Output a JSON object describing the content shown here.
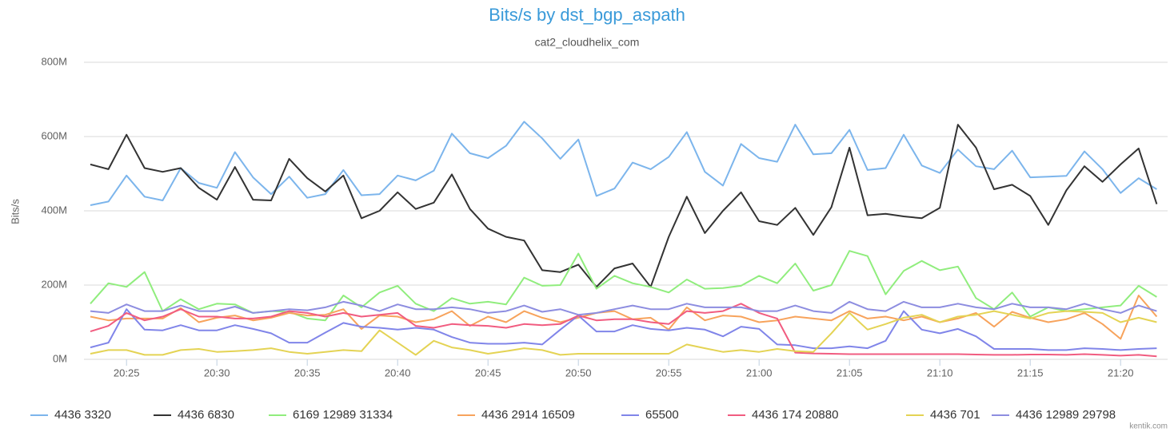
{
  "chart_data": {
    "type": "line",
    "title": "Bits/s by dst_bgp_aspath",
    "subtitle": "cat2_cloudhelix_com",
    "y_axis_label": "Bits/s",
    "credit": "kentik.com",
    "categories": [
      null,
      null,
      "20:25",
      null,
      null,
      null,
      null,
      "20:30",
      null,
      null,
      null,
      null,
      "20:35",
      null,
      null,
      null,
      null,
      "20:40",
      null,
      null,
      null,
      null,
      "20:45",
      null,
      null,
      null,
      null,
      "20:50",
      null,
      null,
      null,
      null,
      "20:55",
      null,
      null,
      null,
      null,
      "21:00",
      null,
      null,
      null,
      null,
      "21:05",
      null,
      null,
      null,
      null,
      "21:10",
      null,
      null,
      null,
      null,
      "21:15",
      null,
      null,
      null,
      null,
      "21:20",
      null,
      null
    ],
    "ylim": [
      0,
      800000000.0
    ],
    "yticks": [
      {
        "value": 0,
        "label": "0M"
      },
      {
        "value": 200000000.0,
        "label": "200M"
      },
      {
        "value": 400000000.0,
        "label": "400M"
      },
      {
        "value": 600000000.0,
        "label": "600M"
      },
      {
        "value": 800000000.0,
        "label": "800M"
      }
    ],
    "grid": true,
    "legend": "bottom",
    "series": [
      {
        "name": "4436 3320",
        "color": "#7cb5ec",
        "values": [
          415000000.0,
          425000000.0,
          495000000.0,
          438000000.0,
          428000000.0,
          515000000.0,
          475000000.0,
          462000000.0,
          558000000.0,
          490000000.0,
          445000000.0,
          492000000.0,
          435000000.0,
          445000000.0,
          510000000.0,
          442000000.0,
          445000000.0,
          495000000.0,
          482000000.0,
          508000000.0,
          608000000.0,
          555000000.0,
          542000000.0,
          575000000.0,
          640000000.0,
          595000000.0,
          540000000.0,
          592000000.0,
          440000000.0,
          460000000.0,
          530000000.0,
          512000000.0,
          545000000.0,
          612000000.0,
          505000000.0,
          468000000.0,
          580000000.0,
          542000000.0,
          532000000.0,
          632000000.0,
          552000000.0,
          555000000.0,
          618000000.0,
          510000000.0,
          515000000.0,
          605000000.0,
          522000000.0,
          502000000.0,
          565000000.0,
          520000000.0,
          512000000.0,
          562000000.0,
          490000000.0,
          492000000.0,
          494000000.0,
          560000000.0,
          512000000.0,
          448000000.0,
          488000000.0,
          458000000.0
        ]
      },
      {
        "name": "4436 6830",
        "color": "#333333",
        "values": [
          525000000.0,
          512000000.0,
          605000000.0,
          515000000.0,
          505000000.0,
          515000000.0,
          462000000.0,
          430000000.0,
          518000000.0,
          430000000.0,
          428000000.0,
          540000000.0,
          488000000.0,
          452000000.0,
          495000000.0,
          380000000.0,
          400000000.0,
          450000000.0,
          405000000.0,
          422000000.0,
          498000000.0,
          405000000.0,
          352000000.0,
          330000000.0,
          320000000.0,
          240000000.0,
          235000000.0,
          255000000.0,
          195000000.0,
          245000000.0,
          258000000.0,
          195000000.0,
          330000000.0,
          438000000.0,
          340000000.0,
          400000000.0,
          450000000.0,
          372000000.0,
          362000000.0,
          408000000.0,
          335000000.0,
          410000000.0,
          570000000.0,
          388000000.0,
          392000000.0,
          385000000.0,
          380000000.0,
          408000000.0,
          632000000.0,
          570000000.0,
          458000000.0,
          470000000.0,
          440000000.0,
          362000000.0,
          455000000.0,
          520000000.0,
          478000000.0,
          525000000.0,
          568000000.0,
          418000000.0
        ]
      },
      {
        "name": "6169 12989 31334",
        "color": "#90ed7d",
        "values": [
          150000000.0,
          205000000.0,
          195000000.0,
          235000000.0,
          130000000.0,
          162000000.0,
          135000000.0,
          150000000.0,
          148000000.0,
          125000000.0,
          130000000.0,
          128000000.0,
          110000000.0,
          105000000.0,
          172000000.0,
          140000000.0,
          180000000.0,
          198000000.0,
          150000000.0,
          130000000.0,
          165000000.0,
          150000000.0,
          155000000.0,
          148000000.0,
          220000000.0,
          198000000.0,
          200000000.0,
          285000000.0,
          190000000.0,
          225000000.0,
          205000000.0,
          195000000.0,
          180000000.0,
          215000000.0,
          190000000.0,
          192000000.0,
          198000000.0,
          225000000.0,
          205000000.0,
          258000000.0,
          185000000.0,
          200000000.0,
          292000000.0,
          278000000.0,
          175000000.0,
          238000000.0,
          265000000.0,
          240000000.0,
          250000000.0,
          165000000.0,
          135000000.0,
          180000000.0,
          115000000.0,
          140000000.0,
          130000000.0,
          135000000.0,
          140000000.0,
          145000000.0,
          198000000.0,
          168000000.0
        ]
      },
      {
        "name": "4436 2914 16509",
        "color": "#f7a35c",
        "values": [
          115000000.0,
          105000000.0,
          110000000.0,
          110000000.0,
          110000000.0,
          138000000.0,
          100000000.0,
          112000000.0,
          118000000.0,
          105000000.0,
          112000000.0,
          125000000.0,
          118000000.0,
          120000000.0,
          135000000.0,
          82000000.0,
          118000000.0,
          115000000.0,
          100000000.0,
          108000000.0,
          130000000.0,
          90000000.0,
          115000000.0,
          100000000.0,
          130000000.0,
          112000000.0,
          100000000.0,
          112000000.0,
          125000000.0,
          130000000.0,
          108000000.0,
          112000000.0,
          80000000.0,
          140000000.0,
          105000000.0,
          118000000.0,
          115000000.0,
          100000000.0,
          105000000.0,
          115000000.0,
          110000000.0,
          105000000.0,
          130000000.0,
          110000000.0,
          115000000.0,
          105000000.0,
          115000000.0,
          100000000.0,
          110000000.0,
          125000000.0,
          88000000.0,
          128000000.0,
          112000000.0,
          100000000.0,
          108000000.0,
          125000000.0,
          95000000.0,
          55000000.0,
          172000000.0,
          115000000.0
        ]
      },
      {
        "name": "65500",
        "color": "#8085e9",
        "values": [
          32000000.0,
          45000000.0,
          135000000.0,
          80000000.0,
          78000000.0,
          92000000.0,
          78000000.0,
          78000000.0,
          92000000.0,
          82000000.0,
          70000000.0,
          45000000.0,
          45000000.0,
          72000000.0,
          98000000.0,
          88000000.0,
          85000000.0,
          80000000.0,
          85000000.0,
          80000000.0,
          60000000.0,
          45000000.0,
          42000000.0,
          42000000.0,
          45000000.0,
          40000000.0,
          80000000.0,
          118000000.0,
          75000000.0,
          75000000.0,
          92000000.0,
          82000000.0,
          78000000.0,
          85000000.0,
          80000000.0,
          62000000.0,
          88000000.0,
          82000000.0,
          40000000.0,
          38000000.0,
          30000000.0,
          30000000.0,
          35000000.0,
          30000000.0,
          50000000.0,
          130000000.0,
          80000000.0,
          70000000.0,
          82000000.0,
          62000000.0,
          28000000.0,
          28000000.0,
          28000000.0,
          25000000.0,
          25000000.0,
          30000000.0,
          28000000.0,
          25000000.0,
          28000000.0,
          30000000.0
        ]
      },
      {
        "name": "4436 174 20880",
        "color": "#f15c80",
        "values": [
          75000000.0,
          90000000.0,
          125000000.0,
          105000000.0,
          115000000.0,
          135000000.0,
          115000000.0,
          115000000.0,
          110000000.0,
          110000000.0,
          115000000.0,
          130000000.0,
          125000000.0,
          115000000.0,
          125000000.0,
          115000000.0,
          120000000.0,
          125000000.0,
          90000000.0,
          85000000.0,
          95000000.0,
          92000000.0,
          90000000.0,
          85000000.0,
          95000000.0,
          92000000.0,
          95000000.0,
          118000000.0,
          105000000.0,
          108000000.0,
          108000000.0,
          100000000.0,
          95000000.0,
          130000000.0,
          125000000.0,
          130000000.0,
          150000000.0,
          125000000.0,
          110000000.0,
          18000000.0,
          16000000.0,
          15000000.0,
          14000000.0,
          14000000.0,
          14000000.0,
          14000000.0,
          14000000.0,
          14000000.0,
          14000000.0,
          13000000.0,
          12000000.0,
          12000000.0,
          13000000.0,
          13000000.0,
          12000000.0,
          14000000.0,
          12000000.0,
          10000000.0,
          12000000.0,
          8000000.0
        ]
      },
      {
        "name": "4436 701",
        "color": "#e4d354",
        "values": [
          15000000.0,
          25000000.0,
          25000000.0,
          12000000.0,
          12000000.0,
          25000000.0,
          28000000.0,
          20000000.0,
          22000000.0,
          25000000.0,
          30000000.0,
          20000000.0,
          15000000.0,
          20000000.0,
          25000000.0,
          22000000.0,
          78000000.0,
          45000000.0,
          12000000.0,
          50000000.0,
          32000000.0,
          25000000.0,
          15000000.0,
          22000000.0,
          30000000.0,
          25000000.0,
          12000000.0,
          15000000.0,
          15000000.0,
          15000000.0,
          15000000.0,
          15000000.0,
          15000000.0,
          40000000.0,
          30000000.0,
          20000000.0,
          25000000.0,
          20000000.0,
          28000000.0,
          22000000.0,
          20000000.0,
          70000000.0,
          125000000.0,
          80000000.0,
          95000000.0,
          112000000.0,
          120000000.0,
          100000000.0,
          115000000.0,
          120000000.0,
          130000000.0,
          120000000.0,
          110000000.0,
          125000000.0,
          130000000.0,
          128000000.0,
          125000000.0,
          100000000.0,
          112000000.0,
          100000000.0
        ]
      },
      {
        "name": "4436 12989 29798",
        "color": "#8d8de0",
        "values": [
          130000000.0,
          125000000.0,
          148000000.0,
          130000000.0,
          130000000.0,
          145000000.0,
          130000000.0,
          130000000.0,
          142000000.0,
          125000000.0,
          130000000.0,
          135000000.0,
          132000000.0,
          140000000.0,
          155000000.0,
          145000000.0,
          130000000.0,
          148000000.0,
          135000000.0,
          135000000.0,
          140000000.0,
          135000000.0,
          125000000.0,
          130000000.0,
          145000000.0,
          128000000.0,
          135000000.0,
          120000000.0,
          125000000.0,
          135000000.0,
          145000000.0,
          135000000.0,
          135000000.0,
          150000000.0,
          140000000.0,
          140000000.0,
          140000000.0,
          130000000.0,
          130000000.0,
          145000000.0,
          130000000.0,
          125000000.0,
          155000000.0,
          135000000.0,
          130000000.0,
          155000000.0,
          140000000.0,
          140000000.0,
          150000000.0,
          140000000.0,
          135000000.0,
          150000000.0,
          140000000.0,
          140000000.0,
          135000000.0,
          150000000.0,
          135000000.0,
          125000000.0,
          145000000.0,
          130000000.0
        ]
      }
    ]
  }
}
